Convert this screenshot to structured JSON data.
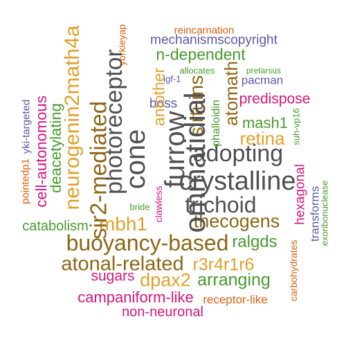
{
  "palette": {
    "purple": "#5b5aa6",
    "orange": "#d95f12",
    "green": "#479a2c",
    "brown": "#8c6616",
    "pink": "#d4167c",
    "gold": "#e0a12a",
    "gray": "#505050"
  },
  "words": [
    {
      "text": "reincarnation",
      "color": "orange",
      "orient": "h"
    },
    {
      "text": "mechanismscopyright",
      "color": "purple",
      "orient": "h"
    },
    {
      "text": "n-dependent",
      "color": "green",
      "orient": "h"
    },
    {
      "text": "allocates",
      "color": "green",
      "orient": "h"
    },
    {
      "text": "pretarsus",
      "color": "green",
      "orient": "h"
    },
    {
      "text": "igf-1",
      "color": "purple",
      "orient": "h"
    },
    {
      "text": "pacman",
      "color": "purple",
      "orient": "h"
    },
    {
      "text": "predispose",
      "color": "pink",
      "orient": "h"
    },
    {
      "text": "boss",
      "color": "purple",
      "orient": "h"
    },
    {
      "text": "mash1",
      "color": "green",
      "orient": "h"
    },
    {
      "text": "retina",
      "color": "gold",
      "orient": "h"
    },
    {
      "text": "adopting",
      "color": "gray",
      "orient": "h"
    },
    {
      "text": "crystalline",
      "color": "gray",
      "orient": "h"
    },
    {
      "text": "trichoid",
      "color": "gray",
      "orient": "h"
    },
    {
      "text": "thecogens",
      "color": "brown",
      "orient": "h"
    },
    {
      "text": "bride",
      "color": "green",
      "orient": "h"
    },
    {
      "text": "catabolism",
      "color": "green",
      "orient": "h"
    },
    {
      "text": "mbh1",
      "color": "gold",
      "orient": "h"
    },
    {
      "text": "buoyancy-based",
      "color": "brown",
      "orient": "h"
    },
    {
      "text": "ralgds",
      "color": "green",
      "orient": "h"
    },
    {
      "text": "atonal-related",
      "color": "brown",
      "orient": "h"
    },
    {
      "text": "r3r4r1r6",
      "color": "gold",
      "orient": "h"
    },
    {
      "text": "sugars",
      "color": "pink",
      "orient": "h"
    },
    {
      "text": "dpax2",
      "color": "gold",
      "orient": "h"
    },
    {
      "text": "arranging",
      "color": "green",
      "orient": "h"
    },
    {
      "text": "campaniform-like",
      "color": "pink",
      "orient": "h"
    },
    {
      "text": "receptor-like",
      "color": "orange",
      "orient": "h"
    },
    {
      "text": "non-neuronal",
      "color": "pink",
      "orient": "h"
    },
    {
      "text": "yorkieyap",
      "color": "orange",
      "orient": "v"
    },
    {
      "text": "antother",
      "color": "gold",
      "orient": "v"
    },
    {
      "text": "atomath",
      "color": "brown",
      "orient": "v"
    },
    {
      "text": "sirtuins",
      "color": "brown",
      "orient": "v"
    },
    {
      "text": "phalloidin",
      "color": "green",
      "orient": "v"
    },
    {
      "text": "suh-vp16",
      "color": "green",
      "orient": "v"
    },
    {
      "text": "furrow",
      "color": "gray",
      "orient": "v"
    },
    {
      "text": "ommatidial",
      "color": "gray",
      "orient": "v"
    },
    {
      "text": "cone",
      "color": "gray",
      "orient": "v"
    },
    {
      "text": "photoreceptor",
      "color": "gray",
      "orient": "v"
    },
    {
      "text": "sir2-mediated",
      "color": "brown",
      "orient": "v"
    },
    {
      "text": "neurogenin2math4a",
      "color": "gold",
      "orient": "v"
    },
    {
      "text": "deacetylating",
      "color": "green",
      "orient": "v"
    },
    {
      "text": "cell-autonomous",
      "color": "pink",
      "orient": "v"
    },
    {
      "text": "yki-targeted",
      "color": "purple",
      "orient": "v"
    },
    {
      "text": "pointedp1",
      "color": "orange",
      "orient": "v"
    },
    {
      "text": "clawless",
      "color": "pink",
      "orient": "v"
    },
    {
      "text": "hexagonal",
      "color": "pink",
      "orient": "v"
    },
    {
      "text": "transforms",
      "color": "purple",
      "orient": "v"
    },
    {
      "text": "exoribonuclease",
      "color": "green",
      "orient": "v"
    },
    {
      "text": "carbohydrates",
      "color": "orange",
      "orient": "v"
    }
  ]
}
